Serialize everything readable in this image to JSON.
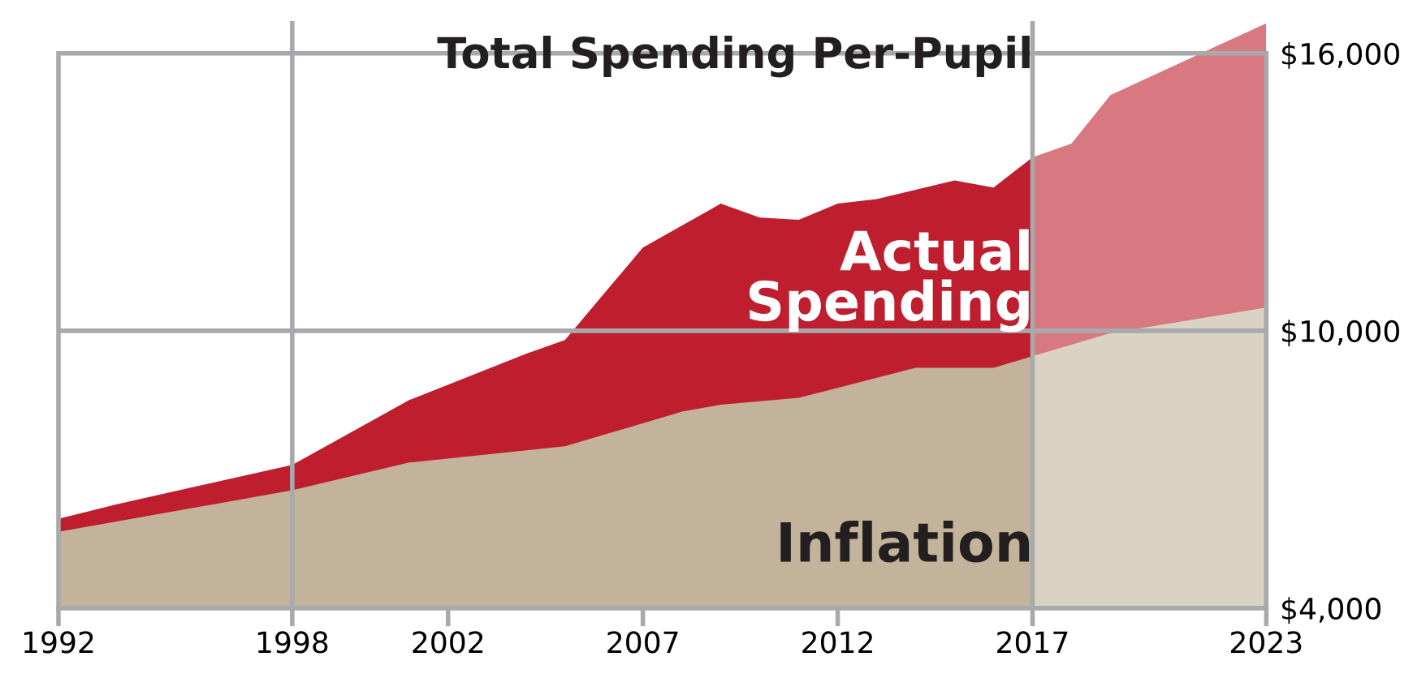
{
  "chart_data": {
    "type": "area",
    "title": "Total Spending Per-Pupil",
    "series": [
      {
        "name": "Actual Spending",
        "color": "#be1e2d",
        "x": [
          1992,
          1993.5,
          1998,
          2001,
          2004,
          2005,
          2007,
          2009,
          2010,
          2011,
          2012,
          2013,
          2015,
          2016,
          2017
        ],
        "values": [
          5930,
          6250,
          7100,
          8500,
          9500,
          9800,
          11800,
          12750,
          12450,
          12400,
          12750,
          12850,
          13250,
          13100,
          13750
        ]
      },
      {
        "color": "#d87880",
        "x": [
          2017,
          2018,
          2019,
          2023
        ],
        "values": [
          13750,
          14050,
          15100,
          16650
        ]
      },
      {
        "name": "Inflation",
        "color": "#c2b39a",
        "x": [
          1992,
          1998,
          2001,
          2005,
          2008,
          2009,
          2011,
          2014,
          2016,
          2017
        ],
        "values": [
          5650,
          6550,
          7150,
          7500,
          8250,
          8400,
          8550,
          9200,
          9200,
          9450
        ]
      },
      {
        "color": "#dad3c3",
        "x": [
          2017,
          2019,
          2023
        ],
        "values": [
          9450,
          9950,
          10500
        ]
      }
    ],
    "xlim": [
      1992,
      2023
    ],
    "xticks": [
      1992,
      1998,
      2002,
      2007,
      2012,
      2017,
      2023
    ],
    "ylim": [
      4000,
      16700
    ],
    "yticks": [
      {
        "value": 4000,
        "label": "$4,000"
      },
      {
        "value": 10000,
        "label": "$10,000"
      },
      {
        "value": 16000,
        "label": "$16,000"
      }
    ],
    "grid": "y",
    "ref_lines": [
      {
        "axis": "x",
        "value": 1998,
        "color": "#a7a9ac"
      },
      {
        "axis": "x",
        "value": 2017,
        "color": "#a7a9ac"
      }
    ]
  }
}
